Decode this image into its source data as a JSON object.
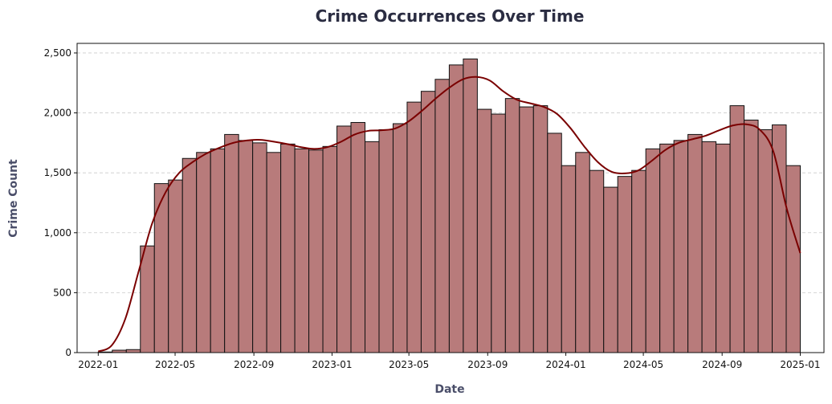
{
  "chart_data": {
    "type": "bar",
    "title": "Crime Occurrences Over Time",
    "xlabel": "Date",
    "ylabel": "Crime Count",
    "x_ticks": [
      "2022-01",
      "2022-05",
      "2022-09",
      "2023-01",
      "2023-05",
      "2023-09",
      "2024-01",
      "2024-05",
      "2024-09",
      "2025-01"
    ],
    "y_ticks": [
      "0",
      "500",
      "1,000",
      "1,500",
      "2,000",
      "2,500"
    ],
    "ylim": [
      0,
      2580
    ],
    "xlim": [
      "2021-11-29",
      "2025-02-07"
    ],
    "grid": "horizontal",
    "bin_start": "2022-01-01",
    "bin_end": "2025-01-01",
    "values": [
      5,
      20,
      25,
      890,
      1410,
      1440,
      1620,
      1670,
      1700,
      1820,
      1770,
      1750,
      1670,
      1740,
      1700,
      1690,
      1720,
      1890,
      1920,
      1760,
      1860,
      1910,
      2090,
      2180,
      2280,
      2400,
      2450,
      2030,
      1990,
      2120,
      2050,
      2060,
      1830,
      1560,
      1670,
      1520,
      1380,
      1470,
      1520,
      1700,
      1740,
      1770,
      1820,
      1760,
      1740,
      2060,
      1940,
      1860,
      1900,
      1560
    ],
    "kde_points": [
      [
        0,
        10
      ],
      [
        1,
        60
      ],
      [
        2,
        280
      ],
      [
        3,
        680
      ],
      [
        4,
        1080
      ],
      [
        5,
        1340
      ],
      [
        6,
        1500
      ],
      [
        7,
        1590
      ],
      [
        8,
        1660
      ],
      [
        9,
        1710
      ],
      [
        10,
        1750
      ],
      [
        11,
        1770
      ],
      [
        12,
        1775
      ],
      [
        13,
        1760
      ],
      [
        14,
        1740
      ],
      [
        15,
        1715
      ],
      [
        16,
        1700
      ],
      [
        17,
        1715
      ],
      [
        18,
        1760
      ],
      [
        19,
        1820
      ],
      [
        20,
        1850
      ],
      [
        21,
        1855
      ],
      [
        22,
        1870
      ],
      [
        23,
        1930
      ],
      [
        24,
        2020
      ],
      [
        25,
        2120
      ],
      [
        26,
        2210
      ],
      [
        27,
        2280
      ],
      [
        28,
        2300
      ],
      [
        29,
        2270
      ],
      [
        30,
        2180
      ],
      [
        31,
        2110
      ],
      [
        32,
        2080
      ],
      [
        33,
        2050
      ],
      [
        34,
        1990
      ],
      [
        35,
        1870
      ],
      [
        36,
        1720
      ],
      [
        37,
        1590
      ],
      [
        38,
        1510
      ],
      [
        39,
        1495
      ],
      [
        40,
        1520
      ],
      [
        41,
        1600
      ],
      [
        42,
        1690
      ],
      [
        43,
        1750
      ],
      [
        44,
        1780
      ],
      [
        45,
        1810
      ],
      [
        46,
        1855
      ],
      [
        47,
        1895
      ],
      [
        48,
        1905
      ],
      [
        49,
        1860
      ],
      [
        50,
        1680
      ],
      [
        51,
        1200
      ],
      [
        52,
        830
      ]
    ],
    "colors": {
      "bar": "#b87b7b",
      "kde": "#7a0000"
    }
  }
}
